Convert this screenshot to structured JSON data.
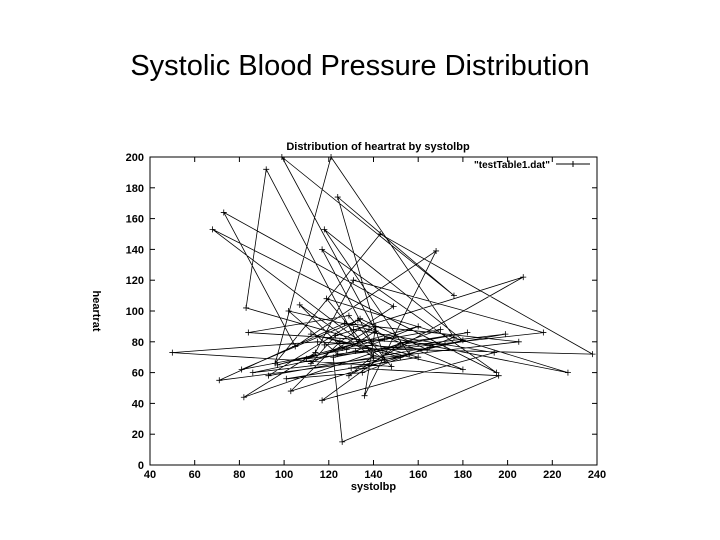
{
  "slide": {
    "title": "Systolic Blood Pressure Distribution"
  },
  "chart_data": {
    "type": "line",
    "title": "Distribution of heartrat  by systolbp",
    "xlabel": "systolbp",
    "ylabel": "heartrat",
    "xlim": [
      40,
      240
    ],
    "ylim": [
      0,
      200
    ],
    "x_ticks": [
      40,
      60,
      80,
      100,
      120,
      140,
      160,
      180,
      200,
      220,
      240
    ],
    "y_ticks": [
      0,
      20,
      40,
      60,
      80,
      100,
      120,
      140,
      160,
      180,
      200
    ],
    "grid": false,
    "legend_position": "top-right",
    "colors": {
      "series": "#000000",
      "background": "#ffffff"
    },
    "series": [
      {
        "name": "\"testTable1.dat\"",
        "marker": "plus",
        "x": [
          118,
          145,
          97,
          160,
          132,
          86,
          205,
          127,
          71,
          152,
          112,
          180,
          138,
          102,
          124,
          199,
          93,
          134,
          164,
          115,
          50,
          148,
          129,
          84,
          172,
          140,
          107,
          126,
          238,
          143,
          96,
          121,
          176,
          135,
          101,
          160,
          83,
          92,
          133,
          110,
          216,
          131,
          114,
          82,
          170,
          139,
          117,
          195,
          68,
          145,
          124,
          176,
          99,
          141,
          128,
          81,
          133,
          146,
          227,
          119,
          140,
          129,
          207,
          123,
          112,
          141,
          136,
          168,
          105,
          73,
          149,
          125,
          103,
          156,
          118,
          180,
          130,
          196,
          126,
          122,
          182,
          152,
          117,
          194,
          131
        ],
        "y": [
          78,
          82,
          65,
          90,
          74,
          60,
          80,
          92,
          55,
          70,
          85,
          62,
          88,
          100,
          72,
          85,
          58,
          95,
          75,
          80,
          73,
          64,
          97,
          86,
          78,
          70,
          104,
          76,
          72,
          150,
          66,
          200,
          83,
          60,
          56,
          70,
          102,
          192,
          79,
          69,
          86,
          120,
          73,
          44,
          88,
          80,
          140,
          60,
          153,
          68,
          174,
          110,
          200,
          87,
          75,
          62,
          94,
          83,
          60,
          108,
          71,
          58,
          122,
          84,
          66,
          90,
          45,
          139,
          77,
          164,
          103,
          80,
          48,
          72,
          153,
          81,
          63,
          58,
          15,
          70,
          86,
          79,
          42,
          73,
          88
        ]
      }
    ]
  }
}
